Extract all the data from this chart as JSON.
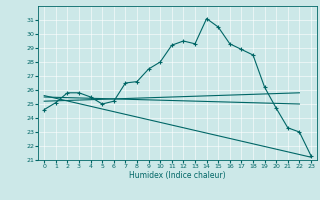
{
  "title": "",
  "xlabel": "Humidex (Indice chaleur)",
  "bg_color": "#cce8e8",
  "line_color": "#006666",
  "xlim": [
    -0.5,
    23.5
  ],
  "ylim": [
    21,
    32
  ],
  "yticks": [
    21,
    22,
    23,
    24,
    25,
    26,
    27,
    28,
    29,
    30,
    31
  ],
  "xticks": [
    0,
    1,
    2,
    3,
    4,
    5,
    6,
    7,
    8,
    9,
    10,
    11,
    12,
    13,
    14,
    15,
    16,
    17,
    18,
    19,
    20,
    21,
    22,
    23
  ],
  "main_line": [
    [
      0,
      24.6
    ],
    [
      1,
      25.1
    ],
    [
      2,
      25.8
    ],
    [
      3,
      25.8
    ],
    [
      4,
      25.5
    ],
    [
      5,
      25.0
    ],
    [
      6,
      25.2
    ],
    [
      7,
      26.5
    ],
    [
      8,
      26.6
    ],
    [
      9,
      27.5
    ],
    [
      10,
      28.0
    ],
    [
      11,
      29.2
    ],
    [
      12,
      29.5
    ],
    [
      13,
      29.3
    ],
    [
      14,
      31.1
    ],
    [
      15,
      30.5
    ],
    [
      16,
      29.3
    ],
    [
      17,
      28.9
    ],
    [
      18,
      28.5
    ],
    [
      19,
      26.2
    ],
    [
      20,
      24.7
    ],
    [
      21,
      23.3
    ],
    [
      22,
      23.0
    ],
    [
      23,
      21.3
    ]
  ],
  "reg_line1": [
    [
      0,
      25.2
    ],
    [
      22,
      25.8
    ]
  ],
  "reg_line2": [
    [
      0,
      25.5
    ],
    [
      22,
      25.0
    ]
  ],
  "reg_line3": [
    [
      0,
      25.6
    ],
    [
      23,
      21.2
    ]
  ],
  "grid_color": "#ffffff",
  "tick_labelsize": 4.5,
  "xlabel_fontsize": 5.5,
  "linewidth": 0.8,
  "marker_size": 3
}
